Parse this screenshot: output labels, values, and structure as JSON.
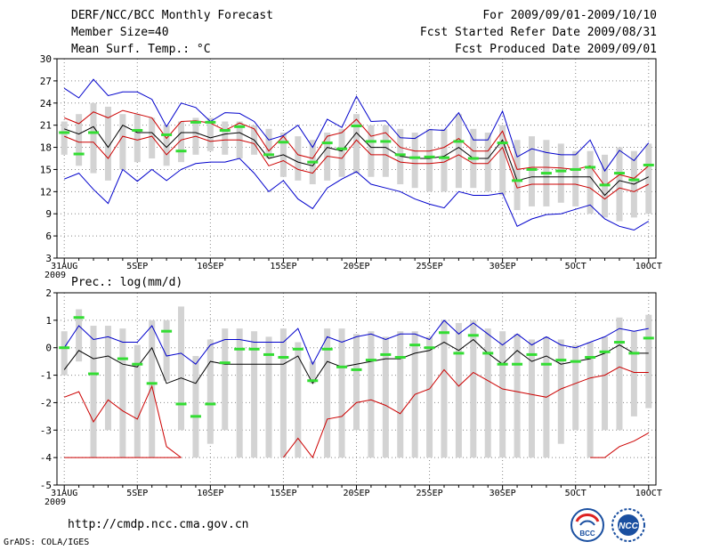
{
  "header": {
    "left": [
      "DERF/NCC/BCC Monthly Forecast",
      "Member Size=40",
      "Mean Surf. Temp.: °C"
    ],
    "right": [
      "For 2009/09/01-2009/10/10",
      "Fcst Started Refer Date 2009/08/31",
      "Fcst Produced Date 2009/09/01"
    ]
  },
  "footer": {
    "url": "http://cmdp.ncc.cma.gov.cn",
    "credit": "GrADS: COLA/IGES"
  },
  "logos": [
    {
      "label": "BCC",
      "icon": "bcc-logo"
    },
    {
      "label": "NCC",
      "icon": "ncc-logo"
    }
  ],
  "colors": {
    "bar": "#d3d3d3",
    "median": "#000000",
    "q": "#cc0000",
    "ext": "#0000cc",
    "obs": "#33dd33"
  },
  "chart_data": [
    {
      "type": "line",
      "id": "temperature",
      "title": "Mean Surf. Temp.: °C",
      "x_tick_labels": [
        "31AUG",
        "5SEP",
        "10SEP",
        "15SEP",
        "20SEP",
        "25SEP",
        "30SEP",
        "5OCT",
        "10OCT"
      ],
      "x_tick_days": [
        0,
        5,
        10,
        15,
        20,
        25,
        30,
        35,
        40
      ],
      "x_year_label": "2009",
      "ylim": [
        3,
        30
      ],
      "y_ticks": [
        3,
        6,
        9,
        12,
        15,
        18,
        21,
        24,
        27,
        30
      ],
      "bars": {
        "low": [
          17.0,
          15.5,
          14.5,
          13.5,
          15.0,
          16.0,
          16.5,
          15.5,
          16.0,
          17.0,
          17.5,
          17.0,
          16.5,
          17.0,
          16.5,
          14.0,
          13.5,
          13.0,
          13.5,
          14.0,
          14.5,
          14.0,
          14.0,
          13.0,
          12.5,
          12.0,
          12.0,
          12.5,
          12.5,
          12.0,
          11.5,
          9.5,
          10.0,
          10.0,
          10.5,
          10.0,
          9.0,
          8.5,
          8.0,
          8.5,
          9.0
        ],
        "high": [
          21.5,
          22.5,
          24.0,
          23.5,
          22.5,
          22.5,
          22.0,
          21.0,
          21.5,
          22.0,
          22.0,
          21.5,
          21.5,
          21.0,
          20.5,
          20.0,
          19.5,
          19.0,
          20.0,
          20.5,
          22.5,
          21.0,
          21.0,
          20.5,
          20.0,
          20.5,
          20.5,
          22.5,
          20.5,
          20.0,
          21.0,
          19.0,
          19.5,
          19.0,
          18.5,
          17.5,
          17.5,
          17.0,
          18.0,
          17.5,
          18.5
        ]
      },
      "series": [
        {
          "name": "ext-high",
          "color": "#0000cc",
          "values": [
            26.0,
            24.7,
            27.2,
            25.0,
            25.5,
            25.5,
            24.5,
            20.8,
            24.0,
            23.4,
            21.5,
            22.7,
            22.6,
            21.5,
            19.0,
            19.6,
            21.0,
            18.0,
            21.8,
            20.7,
            24.9,
            21.5,
            21.6,
            19.3,
            19.2,
            20.4,
            20.3,
            22.7,
            19.0,
            19.0,
            22.9,
            16.7,
            17.8,
            17.3,
            17.0,
            17.0,
            19.0,
            14.8,
            17.6,
            16.2,
            18.6
          ]
        },
        {
          "name": "q-high",
          "color": "#cc0000",
          "values": [
            22.0,
            21.2,
            22.8,
            22.0,
            23.0,
            22.5,
            22.0,
            19.2,
            21.5,
            21.6,
            21.3,
            20.3,
            21.3,
            20.5,
            17.5,
            19.5,
            17.0,
            16.5,
            19.5,
            20.0,
            21.8,
            19.5,
            20.0,
            18.0,
            17.5,
            17.5,
            18.0,
            19.2,
            17.5,
            17.5,
            20.2,
            15.0,
            15.3,
            15.3,
            15.2,
            15.0,
            15.5,
            12.8,
            14.3,
            13.8,
            15.5
          ]
        },
        {
          "name": "median",
          "color": "#000000",
          "values": [
            20.5,
            19.8,
            20.8,
            18.0,
            21.0,
            20.0,
            20.0,
            18.0,
            20.0,
            20.0,
            19.3,
            19.8,
            20.0,
            19.0,
            16.5,
            17.0,
            16.0,
            15.5,
            18.0,
            17.5,
            20.0,
            18.0,
            18.0,
            16.8,
            16.5,
            16.5,
            16.8,
            18.0,
            16.5,
            16.5,
            19.0,
            13.5,
            14.0,
            14.0,
            14.0,
            14.0,
            14.0,
            11.5,
            13.5,
            13.0,
            14.0
          ]
        },
        {
          "name": "q-low",
          "color": "#cc0000",
          "values": [
            19.5,
            18.7,
            18.7,
            16.5,
            19.5,
            19.0,
            19.5,
            17.0,
            19.0,
            19.5,
            18.8,
            19.0,
            19.0,
            18.5,
            15.5,
            16.2,
            15.0,
            14.5,
            16.8,
            16.5,
            19.0,
            17.0,
            17.0,
            16.0,
            15.8,
            15.8,
            16.0,
            17.0,
            15.8,
            15.8,
            18.0,
            12.5,
            13.0,
            13.0,
            13.0,
            13.0,
            12.5,
            11.0,
            12.5,
            12.0,
            13.0
          ]
        },
        {
          "name": "ext-low",
          "color": "#0000cc",
          "values": [
            13.7,
            14.5,
            12.3,
            10.4,
            15.0,
            13.4,
            15.0,
            13.5,
            15.0,
            15.8,
            16.0,
            16.0,
            16.5,
            14.5,
            12.0,
            13.5,
            11.0,
            9.7,
            12.5,
            13.7,
            14.7,
            13.0,
            12.5,
            12.0,
            11.0,
            10.3,
            9.8,
            12.0,
            11.5,
            11.5,
            11.8,
            7.3,
            8.3,
            8.9,
            9.0,
            9.6,
            10.2,
            8.3,
            7.3,
            6.8,
            8.0
          ]
        }
      ],
      "observed": [
        20.0,
        17.1,
        20.0,
        null,
        null,
        20.3,
        null,
        19.7,
        17.5,
        21.4,
        21.4,
        20.3,
        20.8,
        null,
        17.0,
        18.7,
        null,
        16.0,
        18.6,
        17.8,
        20.9,
        18.8,
        18.8,
        17.0,
        16.6,
        16.7,
        16.6,
        18.8,
        16.5,
        null,
        18.6,
        13.5,
        15.0,
        14.5,
        14.8,
        15.0,
        15.3,
        12.9,
        14.5,
        13.6,
        15.6
      ]
    },
    {
      "type": "line",
      "id": "precipitation",
      "title": "Prec.: log(mm/d)",
      "x_tick_labels": [
        "31AUG",
        "5SEP",
        "10SEP",
        "15SEP",
        "20SEP",
        "25SEP",
        "30SEP",
        "5OCT",
        "10OCT"
      ],
      "x_tick_days": [
        0,
        5,
        10,
        15,
        20,
        25,
        30,
        35,
        40
      ],
      "x_year_label": "2009",
      "ylim": [
        -5,
        2
      ],
      "y_ticks": [
        -5,
        -4,
        -3,
        -2,
        -1,
        0,
        1,
        2
      ],
      "bars": {
        "low": [
          -1.0,
          -0.5,
          -4.0,
          -3.0,
          -4.0,
          -4.0,
          -4.0,
          -1.2,
          -3.0,
          -4.0,
          -3.5,
          -3.0,
          -4.0,
          -4.0,
          -4.0,
          -4.0,
          -4.0,
          -1.3,
          -4.0,
          -4.0,
          -3.0,
          -4.0,
          -4.0,
          -4.0,
          -4.0,
          -4.0,
          -4.0,
          -4.0,
          -4.0,
          -4.0,
          -4.0,
          -4.0,
          -4.0,
          -4.0,
          -3.5,
          -3.0,
          -4.0,
          -3.0,
          -3.0,
          -2.5,
          -2.2
        ],
        "high": [
          0.6,
          1.4,
          0.8,
          0.8,
          0.7,
          0.1,
          1.0,
          1.0,
          1.5,
          -0.3,
          0.3,
          0.7,
          0.7,
          0.6,
          0.4,
          0.7,
          0.2,
          -0.5,
          0.7,
          0.7,
          0.5,
          0.6,
          0.4,
          0.6,
          0.6,
          0.4,
          1.0,
          0.9,
          1.0,
          0.7,
          0.6,
          0.5,
          0.3,
          0.4,
          0.3,
          0.1,
          0.2,
          0.4,
          1.1,
          0.6,
          1.2
        ]
      },
      "series": [
        {
          "name": "ext-high",
          "color": "#0000cc",
          "values": [
            0.0,
            0.8,
            0.3,
            0.4,
            0.2,
            0.2,
            0.8,
            -0.3,
            -0.2,
            -0.6,
            0.1,
            0.3,
            0.3,
            0.2,
            0.2,
            0.2,
            0.7,
            -0.6,
            0.4,
            0.2,
            0.4,
            0.5,
            0.3,
            0.5,
            0.5,
            0.3,
            1.0,
            0.5,
            0.9,
            0.5,
            0.1,
            0.5,
            0.1,
            0.4,
            0.1,
            0.0,
            0.2,
            0.4,
            0.7,
            0.6,
            0.7
          ]
        },
        {
          "name": "q-high",
          "color": "#000000",
          "values": [
            -0.8,
            -0.1,
            -0.4,
            -0.3,
            -0.6,
            -0.7,
            0.0,
            -1.3,
            -1.1,
            -1.3,
            -0.5,
            -0.6,
            -0.6,
            -0.6,
            -0.6,
            -0.6,
            -0.3,
            -1.3,
            -0.5,
            -0.7,
            -0.6,
            -0.5,
            -0.4,
            -0.4,
            -0.2,
            -0.1,
            0.2,
            -0.1,
            0.3,
            -0.2,
            -0.6,
            -0.1,
            -0.5,
            -0.3,
            -0.6,
            -0.5,
            -0.4,
            -0.2,
            0.1,
            -0.2,
            -0.2
          ]
        },
        {
          "name": "q-low",
          "color": "#cc0000",
          "values": [
            -1.8,
            -1.6,
            -2.7,
            -1.9,
            -2.3,
            -2.6,
            -1.4,
            -3.6,
            -4.0,
            null,
            null,
            null,
            null,
            null,
            null,
            -4.0,
            -3.3,
            -4.0,
            -2.6,
            -2.5,
            -2.0,
            -1.9,
            -2.1,
            -2.4,
            -1.7,
            -1.5,
            -0.8,
            -1.4,
            -0.9,
            -1.2,
            -1.5,
            -1.6,
            -1.7,
            -1.8,
            -1.5,
            -1.3,
            -1.1,
            -1.0,
            -0.7,
            -0.9,
            -0.9
          ]
        },
        {
          "name": "floor",
          "color": "#cc0000",
          "values": [
            -4.0,
            -4.0,
            -4.0,
            -4.0,
            -4.0,
            -4.0,
            -4.0,
            -4.0,
            -4.0,
            null,
            null,
            null,
            null,
            null,
            null,
            null,
            null,
            -4.0,
            null,
            null,
            null,
            null,
            null,
            null,
            null,
            null,
            null,
            null,
            null,
            null,
            null,
            null,
            null,
            null,
            null,
            null,
            -4.0,
            -4.0,
            -3.6,
            -3.4,
            -3.1
          ]
        }
      ],
      "observed": [
        0.0,
        1.1,
        -0.95,
        null,
        -0.4,
        -0.6,
        -1.3,
        0.6,
        -2.05,
        -2.5,
        -2.05,
        -0.55,
        -0.05,
        -0.05,
        -0.25,
        -0.35,
        -0.05,
        -1.2,
        -0.05,
        -0.7,
        -0.8,
        -0.45,
        -0.25,
        -0.35,
        0.1,
        0.0,
        0.55,
        -0.2,
        0.45,
        -0.2,
        -0.6,
        -0.6,
        -0.25,
        -0.6,
        -0.45,
        -0.5,
        -0.35,
        -0.15,
        0.2,
        -0.2,
        0.35
      ]
    }
  ]
}
